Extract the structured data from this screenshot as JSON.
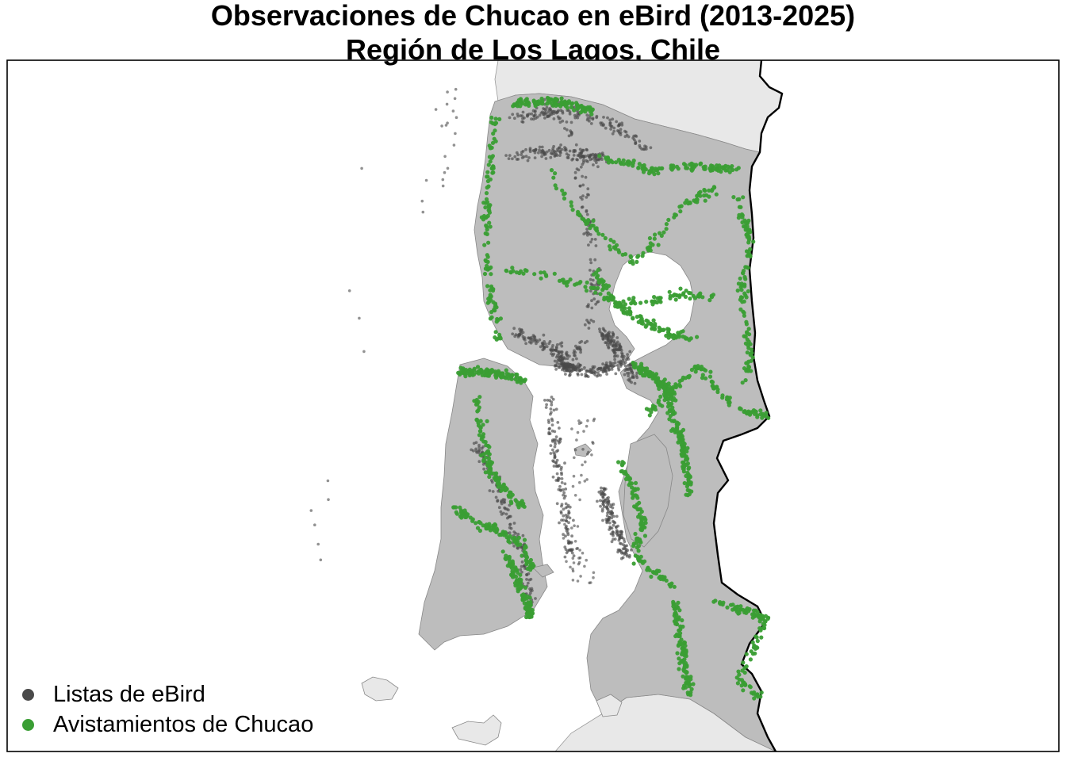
{
  "title": {
    "line1": "Observaciones de Chucao en eBird (2013-2025)",
    "line2": "Región de Los Lagos, Chile"
  },
  "legend": [
    {
      "label": "Listas de eBird",
      "color": "#4a4a4a"
    },
    {
      "label": "Avistamientos de Chucao",
      "color": "#3a9e34"
    }
  ],
  "colors": {
    "checklist_point": "#4a4a4a",
    "sighting_point": "#3a9e34",
    "region_land": "#bdbdbd",
    "neighbor_land": "#e8e8e8",
    "water": "#ffffff",
    "border": "#000000"
  }
}
